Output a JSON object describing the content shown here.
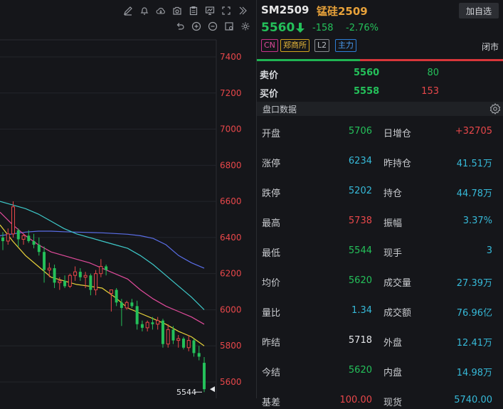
{
  "toolbar": {
    "row1": [
      "pencil-icon",
      "bell-icon",
      "cloud-icon",
      "camera-icon",
      "clipboard-icon",
      "monitor-icon",
      "fullscreen-icon",
      "collapse-right-icon"
    ],
    "row2": [
      "undo-icon",
      "zoom-in-icon",
      "zoom-out-icon",
      "settings-window-icon",
      "gear-icon"
    ]
  },
  "chart_data": {
    "type": "candlestick",
    "yaxis_ticks": [
      "7400",
      "7200",
      "7000",
      "6800",
      "6600",
      "6400",
      "6200",
      "6000",
      "5800",
      "5600"
    ],
    "ylim": [
      5540,
      7440
    ],
    "last_low_label": "5544",
    "candles": [
      {
        "o": 6400,
        "h": 6430,
        "l": 6330,
        "c": 6380
      },
      {
        "o": 6380,
        "h": 6450,
        "l": 6360,
        "c": 6420
      },
      {
        "o": 6420,
        "h": 6600,
        "l": 6400,
        "c": 6570
      },
      {
        "o": 6440,
        "h": 6450,
        "l": 6350,
        "c": 6390
      },
      {
        "o": 6390,
        "h": 6420,
        "l": 6360,
        "c": 6410
      },
      {
        "o": 6410,
        "h": 6440,
        "l": 6370,
        "c": 6380
      },
      {
        "o": 6380,
        "h": 6420,
        "l": 6340,
        "c": 6360
      },
      {
        "o": 6360,
        "h": 6400,
        "l": 6300,
        "c": 6320
      },
      {
        "o": 6320,
        "h": 6350,
        "l": 6150,
        "c": 6220
      },
      {
        "o": 6220,
        "h": 6260,
        "l": 6180,
        "c": 6230
      },
      {
        "o": 6230,
        "h": 6250,
        "l": 6120,
        "c": 6150
      },
      {
        "o": 6150,
        "h": 6180,
        "l": 6110,
        "c": 6160
      },
      {
        "o": 6160,
        "h": 6190,
        "l": 6120,
        "c": 6130
      },
      {
        "o": 6130,
        "h": 6200,
        "l": 6120,
        "c": 6190
      },
      {
        "o": 6190,
        "h": 6240,
        "l": 6160,
        "c": 6210
      },
      {
        "o": 6210,
        "h": 6230,
        "l": 6160,
        "c": 6180
      },
      {
        "o": 6180,
        "h": 6210,
        "l": 6120,
        "c": 6190
      },
      {
        "o": 6190,
        "h": 6200,
        "l": 6080,
        "c": 6110
      },
      {
        "o": 6110,
        "h": 6220,
        "l": 6080,
        "c": 6200
      },
      {
        "o": 6200,
        "h": 6280,
        "l": 6180,
        "c": 6240
      },
      {
        "o": 6240,
        "h": 6250,
        "l": 6190,
        "c": 6220
      },
      {
        "o": 6090,
        "h": 6110,
        "l": 5990,
        "c": 6110
      },
      {
        "o": 6110,
        "h": 6120,
        "l": 6020,
        "c": 6040
      },
      {
        "o": 6040,
        "h": 6060,
        "l": 5910,
        "c": 6010
      },
      {
        "o": 6010,
        "h": 6050,
        "l": 6000,
        "c": 6040
      },
      {
        "o": 6040,
        "h": 6060,
        "l": 6010,
        "c": 6020
      },
      {
        "o": 6020,
        "h": 6050,
        "l": 5890,
        "c": 5920
      },
      {
        "o": 5920,
        "h": 5940,
        "l": 5880,
        "c": 5900
      },
      {
        "o": 5900,
        "h": 5940,
        "l": 5880,
        "c": 5930
      },
      {
        "o": 5930,
        "h": 5960,
        "l": 5890,
        "c": 5920
      },
      {
        "o": 5920,
        "h": 5960,
        "l": 5890,
        "c": 5940
      },
      {
        "o": 5940,
        "h": 5950,
        "l": 5790,
        "c": 5810
      },
      {
        "o": 5810,
        "h": 5920,
        "l": 5790,
        "c": 5890
      },
      {
        "o": 5890,
        "h": 5910,
        "l": 5810,
        "c": 5830
      },
      {
        "o": 5830,
        "h": 5860,
        "l": 5790,
        "c": 5840
      },
      {
        "o": 5840,
        "h": 5850,
        "l": 5780,
        "c": 5790
      },
      {
        "o": 5790,
        "h": 5860,
        "l": 5770,
        "c": 5830
      },
      {
        "o": 5830,
        "h": 5840,
        "l": 5740,
        "c": 5760
      },
      {
        "o": 5760,
        "h": 5800,
        "l": 5720,
        "c": 5740
      },
      {
        "o": 5706,
        "h": 5738,
        "l": 5544,
        "c": 5560
      }
    ],
    "ma_lines": [
      {
        "color": "#5a6ee8",
        "values": [
          6410,
          6420,
          6430,
          6435,
          6435,
          6432,
          6430,
          6428,
          6426,
          6422,
          6418,
          6410,
          6395,
          6360,
          6300,
          6260,
          6230
        ]
      },
      {
        "color": "#3ec9c9",
        "values": [
          6600,
          6580,
          6560,
          6530,
          6490,
          6450,
          6420,
          6400,
          6380,
          6360,
          6340,
          6300,
          6250,
          6190,
          6130,
          6070,
          6000
        ]
      },
      {
        "color": "#e04b9b",
        "values": [
          6540,
          6470,
          6410,
          6360,
          6320,
          6300,
          6280,
          6260,
          6230,
          6200,
          6170,
          6110,
          6060,
          6020,
          5990,
          5960,
          5920
        ]
      },
      {
        "color": "#e8d23a",
        "values": [
          6470,
          6380,
          6300,
          6240,
          6180,
          6160,
          6140,
          6130,
          6120,
          6070,
          6010,
          5980,
          5950,
          5920,
          5880,
          5850,
          5800
        ]
      }
    ]
  },
  "header": {
    "code": "SM2509",
    "name": "锰硅2509",
    "add_btn": "加自选",
    "price": "5560",
    "change": "-158",
    "change_pct": "-2.76%",
    "tags": [
      "CN",
      "郑商所",
      "L2",
      "主力"
    ],
    "status": "闭市"
  },
  "orderbook": {
    "sell_label": "卖价",
    "sell_price": "5560",
    "sell_vol": "80",
    "buy_label": "买价",
    "buy_price": "5558",
    "buy_vol": "153"
  },
  "section": {
    "title": "盘口数据"
  },
  "stats": [
    {
      "l1": "开盘",
      "v1": "5706",
      "c1": "c-green",
      "l2": "日增仓",
      "v2": "+32705",
      "c2": "c-red"
    },
    {
      "l1": "涨停",
      "v1": "6234",
      "c1": "c-cyan",
      "l2": "昨持仓",
      "v2": "41.51万",
      "c2": "c-cyan"
    },
    {
      "l1": "跌停",
      "v1": "5202",
      "c1": "c-cyan",
      "l2": "持仓",
      "v2": "44.78万",
      "c2": "c-cyan"
    },
    {
      "l1": "最高",
      "v1": "5738",
      "c1": "c-red",
      "l2": "振幅",
      "v2": "3.37%",
      "c2": "c-cyan"
    },
    {
      "l1": "最低",
      "v1": "5544",
      "c1": "c-green",
      "l2": "现手",
      "v2": "3",
      "c2": "c-cyan"
    },
    {
      "l1": "均价",
      "v1": "5620",
      "c1": "c-green",
      "l2": "成交量",
      "v2": "27.39万",
      "c2": "c-cyan"
    },
    {
      "l1": "量比",
      "v1": "1.34",
      "c1": "c-cyan",
      "l2": "成交额",
      "v2": "76.96亿",
      "c2": "c-cyan"
    },
    {
      "l1": "昨结",
      "v1": "5718",
      "c1": "c-white",
      "l2": "外盘",
      "v2": "12.41万",
      "c2": "c-cyan"
    },
    {
      "l1": "今结",
      "v1": "5620",
      "c1": "c-green",
      "l2": "内盘",
      "v2": "14.98万",
      "c2": "c-cyan"
    },
    {
      "l1": "基差",
      "v1": "100.00",
      "c1": "c-red",
      "l2": "现货",
      "v2": "5740.00",
      "c2": "c-cyan"
    }
  ]
}
